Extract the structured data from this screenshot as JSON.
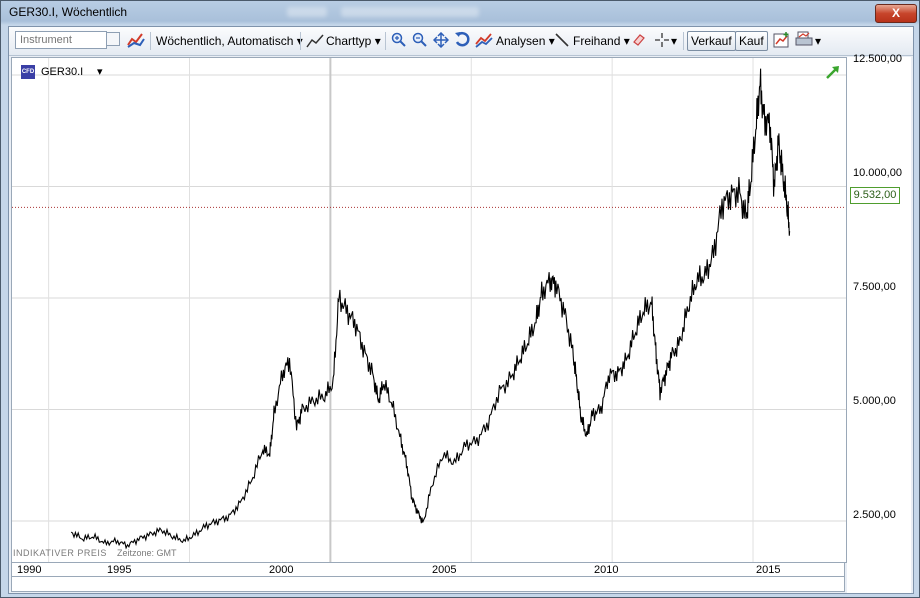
{
  "window": {
    "title": "GER30.I, Wöchentlich",
    "close": "X"
  },
  "toolbar": {
    "instrument_placeholder": "Instrument",
    "timeframe": "Wöchentlich,  Automatisch",
    "chart_type": "Charttyp",
    "analyses": "Analysen",
    "freehand": "Freihand",
    "sell": "Verkauf",
    "buy": "Kauf"
  },
  "chart": {
    "instrument": "GER30.I",
    "indicative": "INDIKATIVER PREIS",
    "timezone": "Zeitzone: GMT",
    "current_price": "9.532,00",
    "price_labels": [
      "12.500,00",
      "10.000,00",
      "7.500,00",
      "5.000,00",
      "2.500,00"
    ],
    "year_labels": [
      "1990",
      "1995",
      "2000",
      "2005",
      "2010",
      "2015"
    ]
  },
  "chart_data": {
    "type": "line",
    "x_unit": "year",
    "xlim": [
      1988.7,
      2018.3
    ],
    "ylim": [
      1580,
      12880
    ],
    "current": 9532,
    "x": [
      1990.8,
      1991.2,
      1991.6,
      1992.0,
      1992.4,
      1992.8,
      1993.2,
      1993.6,
      1994.0,
      1994.4,
      1994.8,
      1995.2,
      1995.6,
      1996.0,
      1996.4,
      1996.8,
      1997.2,
      1997.6,
      1997.85,
      1998.0,
      1998.3,
      1998.55,
      1998.8,
      1999.0,
      1999.4,
      1999.8,
      2000.1,
      2000.3,
      2000.6,
      2000.9,
      2001.2,
      2001.5,
      2001.7,
      2001.9,
      2002.2,
      2002.5,
      2002.7,
      2002.9,
      2003.1,
      2003.3,
      2003.6,
      2004.0,
      2004.4,
      2004.8,
      2005.2,
      2005.6,
      2006.0,
      2006.4,
      2006.7,
      2007.0,
      2007.3,
      2007.5,
      2007.8,
      2008.0,
      2008.3,
      2008.6,
      2008.75,
      2008.9,
      2009.1,
      2009.3,
      2009.6,
      2009.9,
      2010.2,
      2010.5,
      2010.8,
      2011.1,
      2011.4,
      2011.55,
      2011.7,
      2011.9,
      2012.1,
      2012.4,
      2012.7,
      2013.0,
      2013.3,
      2013.6,
      2013.9,
      2014.2,
      2014.5,
      2014.75,
      2014.9,
      2015.1,
      2015.25,
      2015.4,
      2015.6,
      2015.75,
      2015.9,
      2016.05,
      2016.2,
      2016.3
    ],
    "y": [
      2250,
      2100,
      2150,
      2000,
      2050,
      1950,
      2100,
      2200,
      2300,
      2150,
      2050,
      2200,
      2400,
      2500,
      2600,
      2900,
      3400,
      4100,
      4000,
      4900,
      5800,
      6100,
      4600,
      5000,
      5200,
      5300,
      5600,
      7500,
      7200,
      6900,
      6300,
      5800,
      5200,
      5600,
      5100,
      4300,
      3800,
      3000,
      2700,
      2450,
      3300,
      4000,
      3800,
      4200,
      4300,
      4700,
      5400,
      5700,
      6100,
      6500,
      7000,
      7600,
      7900,
      7800,
      7200,
      6300,
      5600,
      4800,
      4400,
      4900,
      5000,
      5800,
      5800,
      6100,
      6700,
      7200,
      7400,
      6300,
      5400,
      5800,
      6200,
      6500,
      7300,
      7900,
      8000,
      8500,
      9600,
      9800,
      9900,
      9300,
      10000,
      11300,
      12300,
      11500,
      11400,
      10000,
      11000,
      10300,
      9600,
      9000
    ]
  }
}
